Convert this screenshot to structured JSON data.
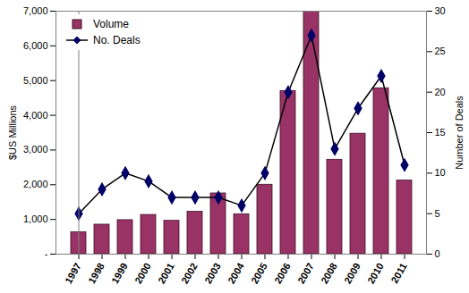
{
  "chart_data": {
    "type": "bar",
    "categories": [
      "1997",
      "1998",
      "1999",
      "2000",
      "2001",
      "2002",
      "2003",
      "2004",
      "2005",
      "2006",
      "2007",
      "2008",
      "2009",
      "2010",
      "2011"
    ],
    "series": [
      {
        "name": "Volume",
        "type": "bar",
        "color": "#993366",
        "values": [
          630,
          850,
          980,
          1130,
          960,
          1220,
          1750,
          1150,
          2000,
          4700,
          7000,
          2720,
          3470,
          4780,
          2120
        ]
      },
      {
        "name": "No. Deals",
        "type": "line",
        "axis": "y2",
        "color": "#000066",
        "marker": "diamond",
        "values": [
          5,
          8,
          10,
          9,
          7,
          7,
          7,
          6,
          10,
          20,
          27,
          13,
          18,
          22,
          11
        ]
      }
    ],
    "y_label": "$US Millions",
    "y2_label": "Number of Deals",
    "ylim": [
      0,
      7000
    ],
    "yticks": [
      {
        "value": 0,
        "label": "-"
      },
      {
        "value": 1000,
        "label": "1,000"
      },
      {
        "value": 2000,
        "label": "2,000"
      },
      {
        "value": 3000,
        "label": "3,000"
      },
      {
        "value": 4000,
        "label": "4,000"
      },
      {
        "value": 5000,
        "label": "5,000"
      },
      {
        "value": 6000,
        "label": "6,000"
      },
      {
        "value": 7000,
        "label": "7,000"
      }
    ],
    "y2lim": [
      0,
      30
    ],
    "y2ticks": [
      0,
      5,
      10,
      15,
      20,
      25,
      30
    ],
    "legend": "top-left",
    "grid": false
  }
}
